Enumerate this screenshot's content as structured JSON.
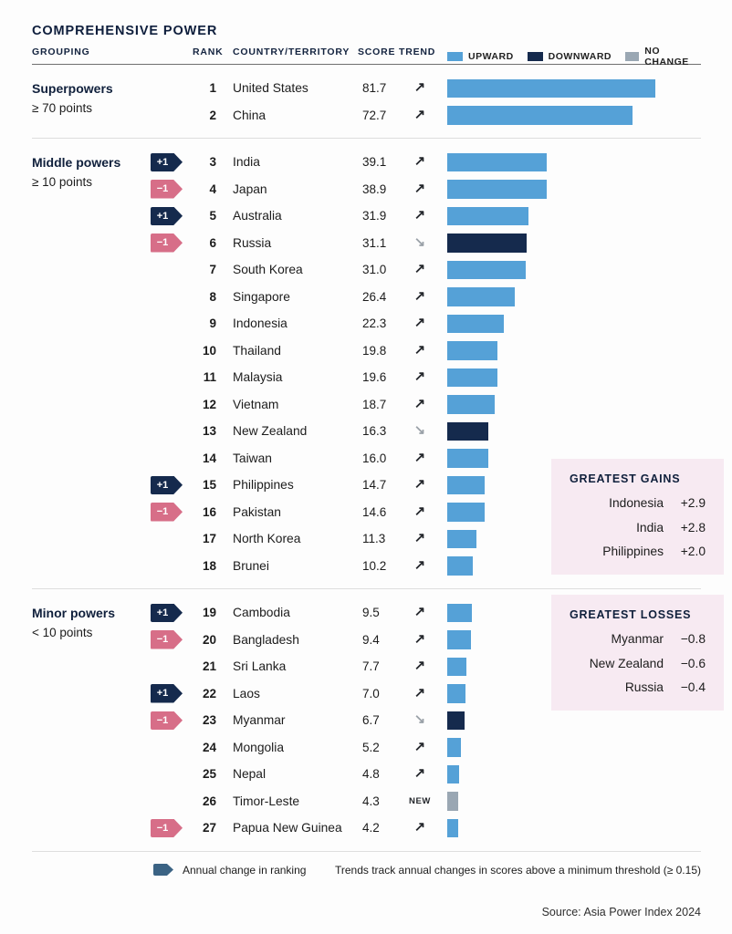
{
  "title": "COMPREHENSIVE POWER",
  "columns": {
    "grouping": "GROUPING",
    "rank": "RANK",
    "country": "COUNTRY/TERRITORY",
    "score": "SCORE",
    "trend": "TREND"
  },
  "legend": [
    {
      "label": "UPWARD",
      "color": "#55a1d7"
    },
    {
      "label": "DOWNWARD",
      "color": "#152a4d"
    },
    {
      "label": "NO CHANGE",
      "color": "#9aa7b3"
    }
  ],
  "colors": {
    "upward": "#55a1d7",
    "downward": "#152a4d",
    "no_change": "#9aa7b3",
    "rank_up_badge": "#152a4d",
    "rank_down_badge": "#d76e88",
    "callout_bg": "#f7eaf2",
    "footer_icon": "#3b6384"
  },
  "chart_data": {
    "type": "bar",
    "title": "COMPREHENSIVE POWER",
    "value_range": [
      0,
      81.7
    ],
    "legend_position": "top",
    "sections": [
      {
        "grouping": "Superpowers",
        "threshold": "≥ 70 points",
        "rows": [
          {
            "rank": "1",
            "country": "United States",
            "score": "81.7",
            "trend": "up",
            "rank_change": null
          },
          {
            "rank": "2",
            "country": "China",
            "score": "72.7",
            "trend": "up",
            "rank_change": null
          }
        ]
      },
      {
        "grouping": "Middle powers",
        "threshold": "≥ 10 points",
        "rows": [
          {
            "rank": "3",
            "country": "India",
            "score": "39.1",
            "trend": "up",
            "rank_change": "+1"
          },
          {
            "rank": "4",
            "country": "Japan",
            "score": "38.9",
            "trend": "up",
            "rank_change": "−1"
          },
          {
            "rank": "5",
            "country": "Australia",
            "score": "31.9",
            "trend": "up",
            "rank_change": "+1"
          },
          {
            "rank": "6",
            "country": "Russia",
            "score": "31.1",
            "trend": "down",
            "rank_change": "−1"
          },
          {
            "rank": "7",
            "country": "South Korea",
            "score": "31.0",
            "trend": "up",
            "rank_change": null
          },
          {
            "rank": "8",
            "country": "Singapore",
            "score": "26.4",
            "trend": "up",
            "rank_change": null
          },
          {
            "rank": "9",
            "country": "Indonesia",
            "score": "22.3",
            "trend": "up",
            "rank_change": null
          },
          {
            "rank": "10",
            "country": "Thailand",
            "score": "19.8",
            "trend": "up",
            "rank_change": null
          },
          {
            "rank": "11",
            "country": "Malaysia",
            "score": "19.6",
            "trend": "up",
            "rank_change": null
          },
          {
            "rank": "12",
            "country": "Vietnam",
            "score": "18.7",
            "trend": "up",
            "rank_change": null
          },
          {
            "rank": "13",
            "country": "New Zealand",
            "score": "16.3",
            "trend": "down",
            "rank_change": null
          },
          {
            "rank": "14",
            "country": "Taiwan",
            "score": "16.0",
            "trend": "up",
            "rank_change": null
          },
          {
            "rank": "15",
            "country": "Philippines",
            "score": "14.7",
            "trend": "up",
            "rank_change": "+1"
          },
          {
            "rank": "16",
            "country": "Pakistan",
            "score": "14.6",
            "trend": "up",
            "rank_change": "−1"
          },
          {
            "rank": "17",
            "country": "North Korea",
            "score": "11.3",
            "trend": "up",
            "rank_change": null
          },
          {
            "rank": "18",
            "country": "Brunei",
            "score": "10.2",
            "trend": "up",
            "rank_change": null
          }
        ]
      },
      {
        "grouping": "Minor powers",
        "threshold": "< 10 points",
        "rows": [
          {
            "rank": "19",
            "country": "Cambodia",
            "score": "9.5",
            "trend": "up",
            "rank_change": "+1"
          },
          {
            "rank": "20",
            "country": "Bangladesh",
            "score": "9.4",
            "trend": "up",
            "rank_change": "−1"
          },
          {
            "rank": "21",
            "country": "Sri Lanka",
            "score": "7.7",
            "trend": "up",
            "rank_change": null
          },
          {
            "rank": "22",
            "country": "Laos",
            "score": "7.0",
            "trend": "up",
            "rank_change": "+1"
          },
          {
            "rank": "23",
            "country": "Myanmar",
            "score": "6.7",
            "trend": "down",
            "rank_change": "−1"
          },
          {
            "rank": "24",
            "country": "Mongolia",
            "score": "5.2",
            "trend": "up",
            "rank_change": null
          },
          {
            "rank": "25",
            "country": "Nepal",
            "score": "4.8",
            "trend": "up",
            "rank_change": null
          },
          {
            "rank": "26",
            "country": "Timor-Leste",
            "score": "4.3",
            "trend": "new",
            "rank_change": null
          },
          {
            "rank": "27",
            "country": "Papua New Guinea",
            "score": "4.2",
            "trend": "up",
            "rank_change": "−1"
          }
        ]
      }
    ]
  },
  "callouts": {
    "gains": {
      "title": "GREATEST GAINS",
      "rows": [
        {
          "name": "Indonesia",
          "value": "+2.9"
        },
        {
          "name": "India",
          "value": "+2.8"
        },
        {
          "name": "Philippines",
          "value": "+2.0"
        }
      ]
    },
    "losses": {
      "title": "GREATEST LOSSES",
      "rows": [
        {
          "name": "Myanmar",
          "value": "−0.8"
        },
        {
          "name": "New Zealand",
          "value": "−0.6"
        },
        {
          "name": "Russia",
          "value": "−0.4"
        }
      ]
    }
  },
  "footer": {
    "badge_label": "Annual change in ranking",
    "note": "Trends track annual changes in scores above a minimum threshold (≥ 0.15)"
  },
  "source": "Source: Asia Power Index 2024"
}
